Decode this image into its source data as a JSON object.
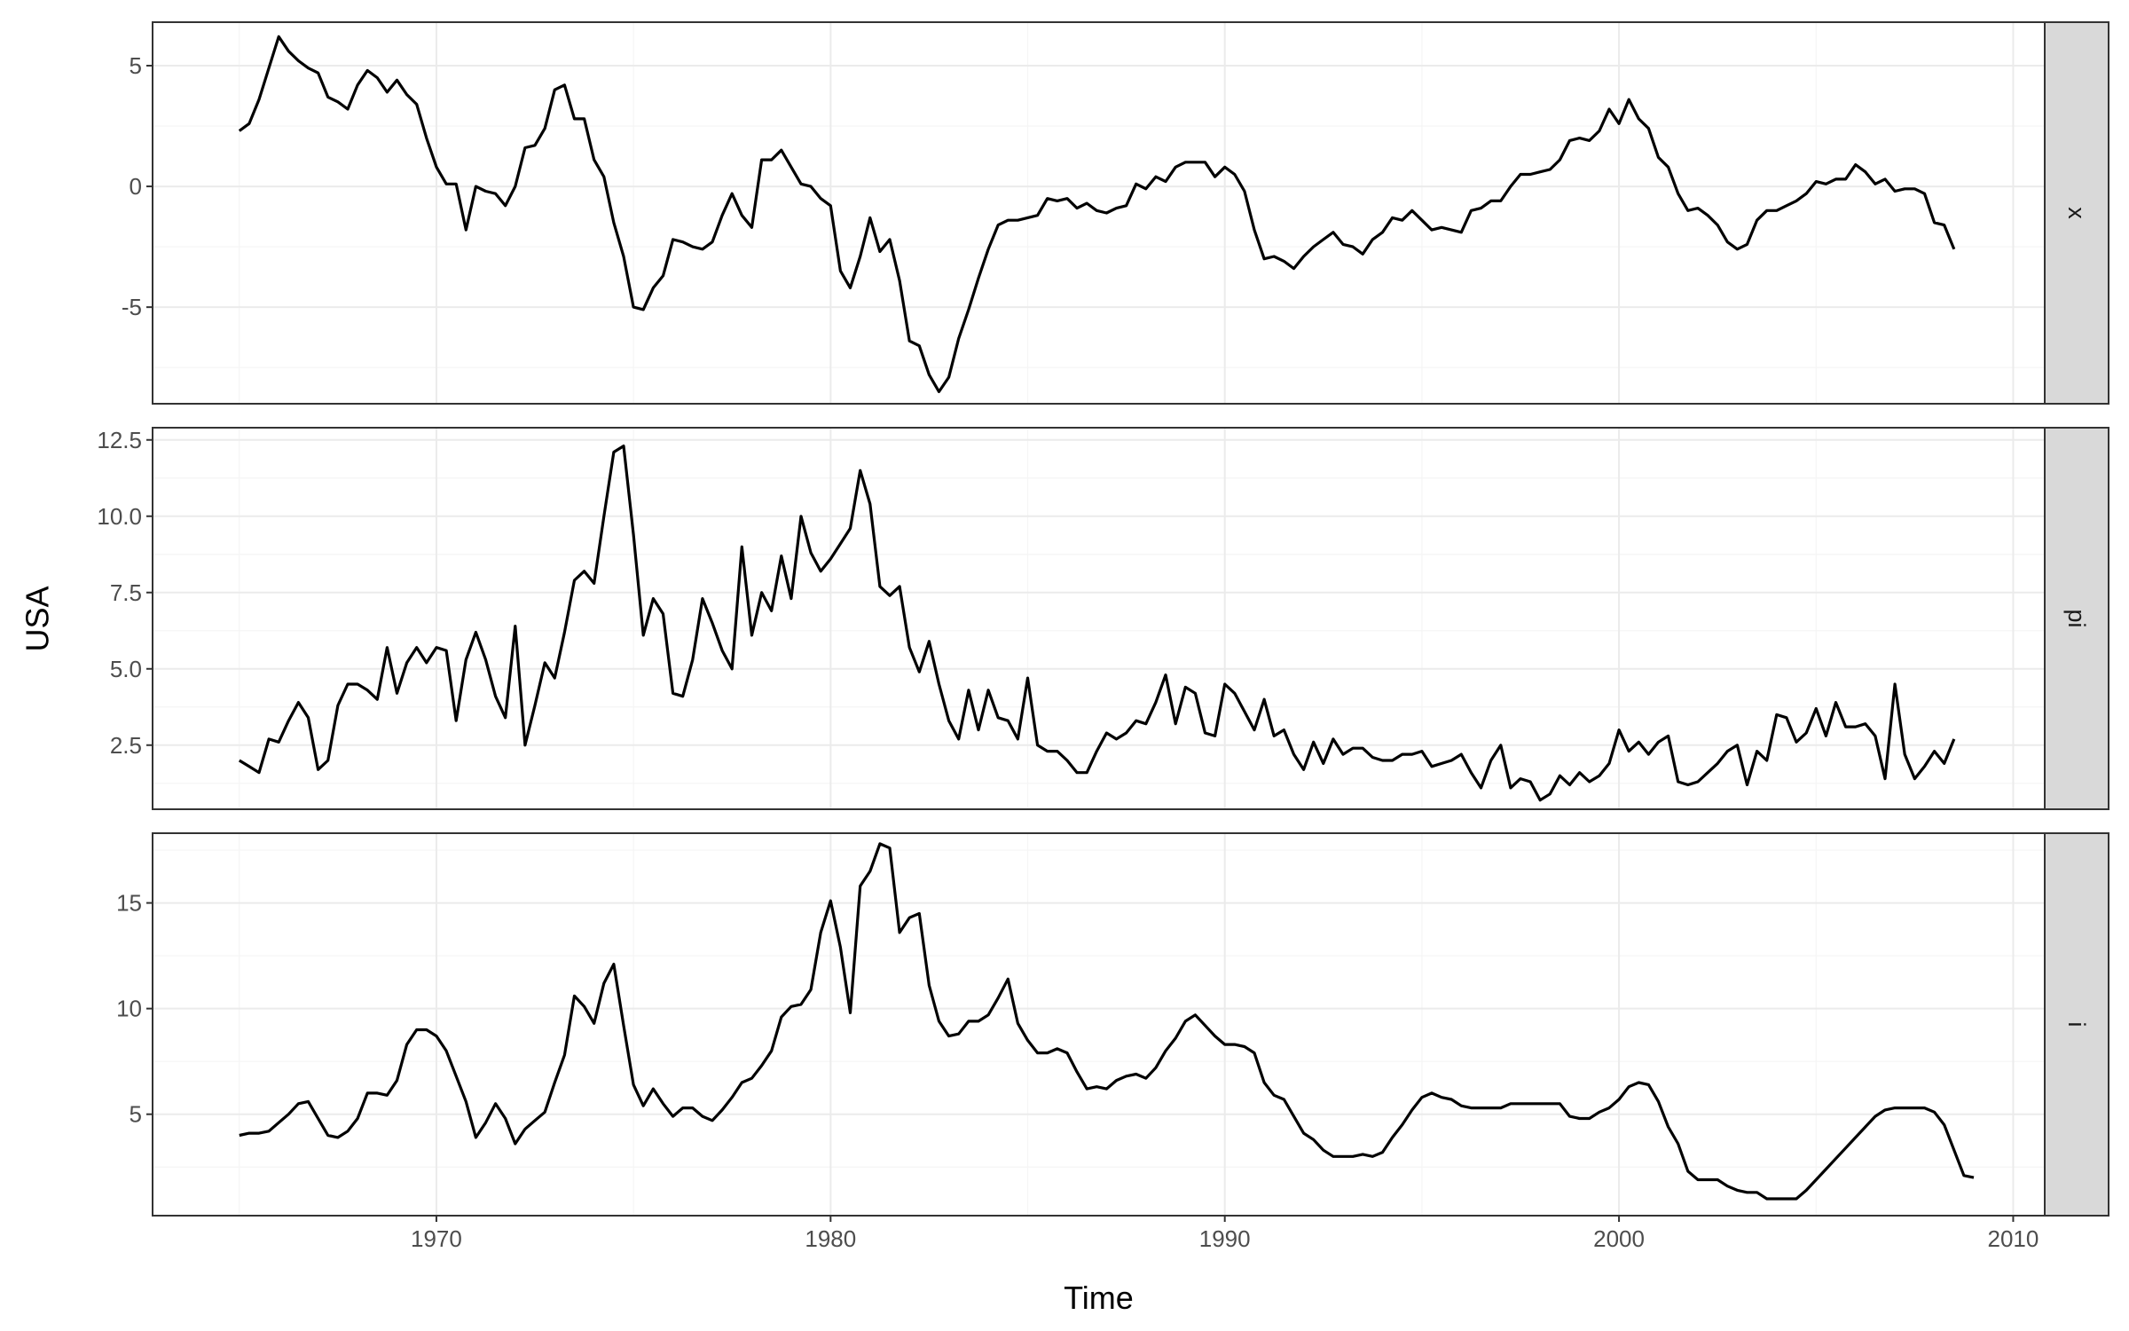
{
  "chart_data": {
    "type": "line",
    "xlabel": "Time",
    "ylabel": "USA",
    "x_ticks": [
      1970,
      1980,
      1990,
      2000,
      2010
    ],
    "xlim": [
      1962.8,
      2010.8
    ],
    "start": 1965.0,
    "step": 0.25,
    "panels": [
      {
        "strip": "x",
        "ylim": [
          -9,
          6.8
        ],
        "y_ticks": [
          -5,
          0,
          5
        ],
        "y_tick_labels": [
          "-5",
          "0",
          "5"
        ],
        "values": [
          2.3,
          2.6,
          3.6,
          4.9,
          6.2,
          5.6,
          5.2,
          4.9,
          4.7,
          3.7,
          3.5,
          3.2,
          4.2,
          4.8,
          4.5,
          3.9,
          4.4,
          3.8,
          3.4,
          2.0,
          0.8,
          0.1,
          0.1,
          -1.8,
          0.0,
          -0.2,
          -0.3,
          -0.8,
          0.0,
          1.6,
          1.7,
          2.4,
          4.0,
          4.2,
          2.8,
          2.8,
          1.1,
          0.4,
          -1.5,
          -2.9,
          -5.0,
          -5.1,
          -4.2,
          -3.7,
          -2.2,
          -2.3,
          -2.5,
          -2.6,
          -2.3,
          -1.2,
          -0.3,
          -1.2,
          -1.7,
          1.1,
          1.1,
          1.5,
          0.8,
          0.1,
          0.0,
          -0.5,
          -0.8,
          -3.5,
          -4.2,
          -2.9,
          -1.3,
          -2.7,
          -2.2,
          -3.9,
          -6.4,
          -6.6,
          -7.8,
          -8.5,
          -7.9,
          -6.3,
          -5.1,
          -3.8,
          -2.6,
          -1.6,
          -1.4,
          -1.4,
          -1.3,
          -1.2,
          -0.5,
          -0.6,
          -0.5,
          -0.9,
          -0.7,
          -1.0,
          -1.1,
          -0.9,
          -0.8,
          0.1,
          -0.1,
          0.4,
          0.2,
          0.8,
          1.0,
          1.0,
          1.0,
          0.4,
          0.8,
          0.5,
          -0.2,
          -1.8,
          -3.0,
          -2.9,
          -3.1,
          -3.4,
          -2.9,
          -2.5,
          -2.2,
          -1.9,
          -2.4,
          -2.5,
          -2.8,
          -2.2,
          -1.9,
          -1.3,
          -1.4,
          -1.0,
          -1.4,
          -1.8,
          -1.7,
          -1.8,
          -1.9,
          -1.0,
          -0.9,
          -0.6,
          -0.6,
          0.0,
          0.5,
          0.5,
          0.6,
          0.7,
          1.1,
          1.9,
          2.0,
          1.9,
          2.3,
          3.2,
          2.6,
          3.6,
          2.8,
          2.4,
          1.2,
          0.8,
          -0.3,
          -1.0,
          -0.9,
          -1.2,
          -1.6,
          -2.3,
          -2.6,
          -2.4,
          -1.4,
          -1.0,
          -1.0,
          -0.8,
          -0.6,
          -0.3,
          0.2,
          0.1,
          0.3,
          0.3,
          0.9,
          0.6,
          0.1,
          0.3,
          -0.2,
          -0.1,
          -0.1,
          -0.3,
          -1.5,
          -1.6,
          -2.6
        ]
      },
      {
        "strip": "pi",
        "ylim": [
          0.4,
          12.9
        ],
        "y_ticks": [
          2.5,
          5.0,
          7.5,
          10.0,
          12.5
        ],
        "y_tick_labels": [
          "2.5",
          "5.0",
          "7.5",
          "10.0",
          "12.5"
        ],
        "values": [
          2.0,
          1.8,
          1.6,
          2.7,
          2.6,
          3.3,
          3.9,
          3.4,
          1.7,
          2.0,
          3.8,
          4.5,
          4.5,
          4.3,
          4.0,
          5.7,
          4.2,
          5.2,
          5.7,
          5.2,
          5.7,
          5.6,
          3.3,
          5.3,
          6.2,
          5.3,
          4.1,
          3.4,
          6.4,
          2.5,
          3.8,
          5.2,
          4.7,
          6.2,
          7.9,
          8.2,
          7.8,
          10.0,
          12.1,
          12.3,
          9.4,
          6.1,
          7.3,
          6.8,
          4.2,
          4.1,
          5.3,
          7.3,
          6.5,
          5.6,
          5.0,
          9.0,
          6.1,
          7.5,
          6.9,
          8.7,
          7.3,
          10.0,
          8.8,
          8.2,
          8.6,
          9.1,
          9.6,
          11.5,
          10.4,
          7.7,
          7.4,
          7.7,
          5.7,
          4.9,
          5.9,
          4.5,
          3.3,
          2.7,
          4.3,
          3.0,
          4.3,
          3.4,
          3.3,
          2.7,
          4.7,
          2.5,
          2.3,
          2.3,
          2.0,
          1.6,
          1.6,
          2.3,
          2.9,
          2.7,
          2.9,
          3.3,
          3.2,
          3.9,
          4.8,
          3.2,
          4.4,
          4.2,
          2.9,
          2.8,
          4.5,
          4.2,
          3.6,
          3.0,
          4.0,
          2.8,
          3.0,
          2.2,
          1.7,
          2.6,
          1.9,
          2.7,
          2.2,
          2.4,
          2.4,
          2.1,
          2.0,
          2.0,
          2.2,
          2.2,
          2.3,
          1.8,
          1.9,
          2.0,
          2.2,
          1.6,
          1.1,
          2.0,
          2.5,
          1.1,
          1.4,
          1.3,
          0.7,
          0.9,
          1.5,
          1.2,
          1.6,
          1.3,
          1.5,
          1.9,
          3.0,
          2.3,
          2.6,
          2.2,
          2.6,
          2.8,
          1.3,
          1.2,
          1.3,
          1.6,
          1.9,
          2.3,
          2.5,
          1.2,
          2.3,
          2.0,
          3.5,
          3.4,
          2.6,
          2.9,
          3.7,
          2.8,
          3.9,
          3.1,
          3.1,
          3.2,
          2.8,
          1.4,
          4.5,
          2.2,
          1.4,
          1.8,
          2.3,
          1.9,
          2.7
        ]
      },
      {
        "strip": "i",
        "ylim": [
          0.2,
          18.3
        ],
        "y_ticks": [
          5,
          10,
          15
        ],
        "y_tick_labels": [
          "5",
          "10",
          "15"
        ],
        "values": [
          4.0,
          4.1,
          4.1,
          4.2,
          4.6,
          5.0,
          5.5,
          5.6,
          4.8,
          4.0,
          3.9,
          4.2,
          4.8,
          6.0,
          6.0,
          5.9,
          6.6,
          8.3,
          9.0,
          9.0,
          8.7,
          8.0,
          6.8,
          5.6,
          3.9,
          4.6,
          5.5,
          4.8,
          3.6,
          4.3,
          4.7,
          5.1,
          6.5,
          7.8,
          10.6,
          10.1,
          9.3,
          11.2,
          12.1,
          9.2,
          6.4,
          5.4,
          6.2,
          5.5,
          4.9,
          5.3,
          5.3,
          4.9,
          4.7,
          5.2,
          5.8,
          6.5,
          6.7,
          7.3,
          8.0,
          9.6,
          10.1,
          10.2,
          10.9,
          13.6,
          15.1,
          12.9,
          9.8,
          15.8,
          16.5,
          17.8,
          17.6,
          13.6,
          14.3,
          14.5,
          11.1,
          9.4,
          8.7,
          8.8,
          9.4,
          9.4,
          9.7,
          10.5,
          11.4,
          9.3,
          8.5,
          7.9,
          7.9,
          8.1,
          7.9,
          7.0,
          6.2,
          6.3,
          6.2,
          6.6,
          6.8,
          6.9,
          6.7,
          7.2,
          8.0,
          8.6,
          9.4,
          9.7,
          9.2,
          8.7,
          8.3,
          8.3,
          8.2,
          7.9,
          6.5,
          5.9,
          5.7,
          4.9,
          4.1,
          3.8,
          3.3,
          3.0,
          3.0,
          3.0,
          3.1,
          3.0,
          3.2,
          3.9,
          4.5,
          5.2,
          5.8,
          6.0,
          5.8,
          5.7,
          5.4,
          5.3,
          5.3,
          5.3,
          5.3,
          5.5,
          5.5,
          5.5,
          5.5,
          5.5,
          5.5,
          4.9,
          4.8,
          4.8,
          5.1,
          5.3,
          5.7,
          6.3,
          6.5,
          6.4,
          5.6,
          4.4,
          3.6,
          2.3,
          1.9,
          1.9,
          1.9,
          1.6,
          1.4,
          1.3,
          1.3,
          1.0,
          1.0,
          1.0,
          1.0,
          1.4,
          1.9,
          2.4,
          2.9,
          3.4,
          3.9,
          4.4,
          4.9,
          5.2,
          5.3,
          5.3,
          5.3,
          5.3,
          5.1,
          4.5,
          3.3,
          2.1,
          2.0
        ]
      }
    ]
  }
}
